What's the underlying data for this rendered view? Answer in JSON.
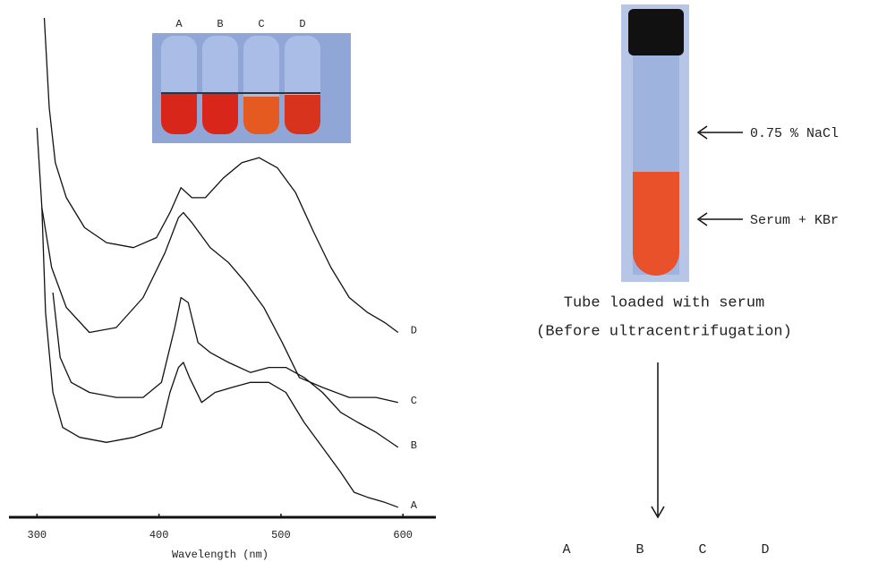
{
  "chart_data": {
    "type": "line",
    "x_label": "Wavelength (nm)",
    "xlim": [
      277,
      627
    ],
    "xticks": [
      300,
      400,
      500,
      600
    ],
    "ylim": [
      0,
      1
    ],
    "series": [
      {
        "name": "A",
        "color": "#111111",
        "x": [
          304,
          307,
          313,
          321,
          335,
          357,
          379,
          402,
          409,
          416,
          420,
          425,
          435,
          446,
          460,
          475,
          490,
          504,
          519,
          534,
          549,
          560,
          571,
          585,
          596
        ],
        "values": [
          0.62,
          0.41,
          0.25,
          0.18,
          0.16,
          0.15,
          0.16,
          0.18,
          0.25,
          0.3,
          0.31,
          0.28,
          0.23,
          0.25,
          0.26,
          0.27,
          0.27,
          0.25,
          0.19,
          0.14,
          0.09,
          0.05,
          0.04,
          0.03,
          0.02
        ]
      },
      {
        "name": "B",
        "color": "#111111",
        "x": [
          313,
          319,
          328,
          343,
          365,
          387,
          402,
          413,
          418,
          424,
          432,
          442,
          457,
          475,
          490,
          504,
          519,
          534,
          549,
          563,
          578,
          596
        ],
        "values": [
          0.45,
          0.32,
          0.27,
          0.25,
          0.24,
          0.24,
          0.27,
          0.38,
          0.44,
          0.43,
          0.35,
          0.33,
          0.31,
          0.29,
          0.3,
          0.3,
          0.28,
          0.25,
          0.21,
          0.19,
          0.17,
          0.14
        ]
      },
      {
        "name": "C",
        "color": "#111111",
        "x": [
          300,
          304,
          312,
          324,
          343,
          365,
          387,
          405,
          416,
          420,
          427,
          442,
          457,
          471,
          486,
          501,
          515,
          534,
          556,
          578,
          596
        ],
        "values": [
          0.78,
          0.62,
          0.5,
          0.42,
          0.37,
          0.38,
          0.44,
          0.53,
          0.6,
          0.61,
          0.59,
          0.54,
          0.51,
          0.47,
          0.42,
          0.35,
          0.28,
          0.26,
          0.24,
          0.24,
          0.23
        ]
      },
      {
        "name": "D",
        "color": "#111111",
        "x": [
          306,
          310,
          315,
          324,
          339,
          357,
          379,
          398,
          409,
          418,
          427,
          438,
          453,
          468,
          482,
          497,
          512,
          527,
          541,
          556,
          571,
          585,
          596
        ],
        "values": [
          1.0,
          0.82,
          0.71,
          0.64,
          0.58,
          0.55,
          0.54,
          0.56,
          0.61,
          0.66,
          0.64,
          0.64,
          0.68,
          0.71,
          0.72,
          0.7,
          0.65,
          0.57,
          0.5,
          0.44,
          0.41,
          0.39,
          0.37
        ]
      }
    ]
  },
  "figure": {
    "inset_labels": [
      "A",
      "B",
      "C",
      "D"
    ],
    "tube_labels": [
      "0.75 % NaCl",
      "Serum + KBr"
    ],
    "caption": [
      "Tube loaded with serum",
      "(Before ultracentrifugation)"
    ],
    "fractions": [
      "A",
      "B",
      "C",
      "D"
    ]
  }
}
